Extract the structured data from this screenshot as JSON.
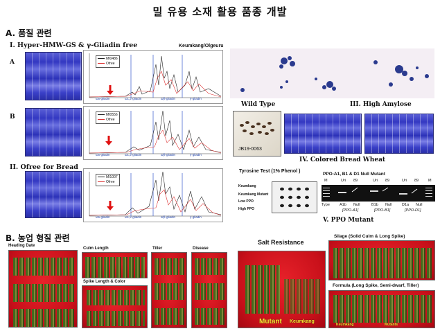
{
  "title": "밀 유용 소재  활용 품종 개발",
  "section_a": "A. 품질 관련",
  "section_b": "B. 농업 형질 관련",
  "quality": {
    "sub1": "I. Hyper-HMW-GS & γ-Gliadin free",
    "sub1_right": "Keumkang/Olgeuru",
    "label_a": "A",
    "label_b": "B",
    "sub2": "II. Ofree for Bread",
    "chrom_a_legend": [
      "MI0486",
      "Ofree"
    ],
    "chrom_b_legend": [
      "MI0556",
      "Ofree"
    ],
    "chrom_c_legend": [
      "MI1007",
      "Ofree"
    ],
    "chrom_axis": [
      "ω5-gliadin",
      "ω1,2-gliadin",
      "α/β-gliadin",
      "γ-gliadin"
    ],
    "wild_type": "Wild Type",
    "high_amylose": "III. High Amylose",
    "seed_label": "JB19-0063",
    "colored": "IV. Colored Bread Wheat",
    "tyrosine": "Tyrosine Test (1% Phenol )",
    "ppo_title": "PPO-A1, B1 & D1 Null Mutant",
    "ppo_rows": [
      "Keumkang",
      "Keumkang  Mutant",
      "Low PPO",
      "High PPO"
    ],
    "ppo_gel_top": [
      "M",
      "Uri",
      "89",
      "Uri",
      "89",
      "Uri",
      "89",
      "M"
    ],
    "ppo_gel_bottom": [
      "Type",
      "A1b",
      "Null",
      "B1b",
      "Null",
      "D1a",
      "Null"
    ],
    "ppo_genes": [
      "[PPO-A1]",
      "[PPO-B1]",
      "[PPO-D1]"
    ],
    "ppo_mutant": "V. PPO Mutant"
  },
  "agronomic": {
    "heading_date": "Heading Date",
    "culm_length": "Culm Length",
    "tiller": "Tiller",
    "disease": "Disease",
    "spike": "Spike Length & Color",
    "salt": "Salt Resistance",
    "salt_mutant": "Mutant",
    "salt_keumkang": "Keumkang",
    "silage": "Silage (Solid Culm & Long Spike)",
    "formula": "Formula (Long Spike, Semi-dwarf, Tiller)",
    "formula_left": "Keumkang",
    "formula_right": "Mutants"
  }
}
